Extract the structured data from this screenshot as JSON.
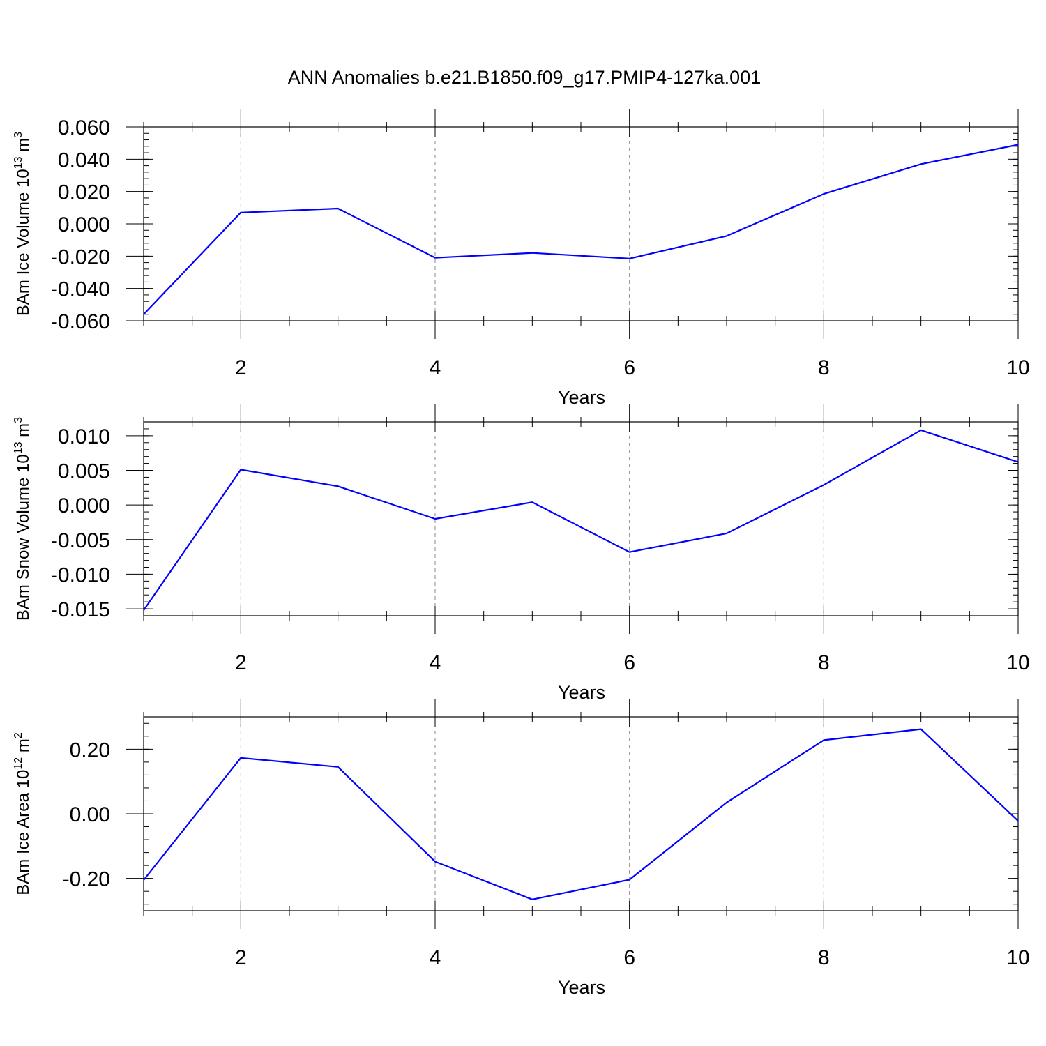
{
  "title": "ANN Anomalies b.e21.B1850.f09_g17.PMIP4-127ka.001",
  "colors": {
    "series": "#0000ff",
    "grid": "#888888"
  },
  "chart_data": [
    {
      "type": "line",
      "ylabel": {
        "main": "BAm Ice Volume 10",
        "sup": "13",
        "unit": " m",
        "unit_sup": "3"
      },
      "xlabel": "Years",
      "x": [
        1,
        2,
        3,
        4,
        5,
        6,
        7,
        8,
        9,
        10
      ],
      "series": [
        {
          "values": [
            -0.056,
            0.007,
            0.0095,
            -0.021,
            -0.018,
            -0.0215,
            -0.0075,
            0.0185,
            0.037,
            0.049
          ]
        }
      ],
      "xlim": [
        1,
        10
      ],
      "ylim": [
        -0.06,
        0.06
      ],
      "xticks": [
        2,
        4,
        6,
        8,
        10
      ],
      "xtick_labels": [
        "2",
        "4",
        "6",
        "8",
        "10"
      ],
      "yticks": [
        -0.06,
        -0.04,
        -0.02,
        0.0,
        0.02,
        0.04,
        0.06
      ],
      "ytick_labels": [
        "-0.060",
        "-0.040",
        "-0.020",
        "0.000",
        "0.020",
        "0.040",
        "0.060"
      ],
      "grid": "x-dashed"
    },
    {
      "type": "line",
      "ylabel": {
        "main": "BAm Snow Volume 10",
        "sup": "13",
        "unit": " m",
        "unit_sup": "3"
      },
      "xlabel": "Years",
      "x": [
        1,
        2,
        3,
        4,
        5,
        6,
        7,
        8,
        9,
        10
      ],
      "series": [
        {
          "values": [
            -0.0152,
            0.0051,
            0.0027,
            -0.002,
            0.0004,
            -0.0068,
            -0.0041,
            0.0029,
            0.0108,
            0.0062
          ]
        }
      ],
      "xlim": [
        1,
        10
      ],
      "ylim": [
        -0.016,
        0.012
      ],
      "xticks": [
        2,
        4,
        6,
        8,
        10
      ],
      "xtick_labels": [
        "2",
        "4",
        "6",
        "8",
        "10"
      ],
      "yticks": [
        -0.015,
        -0.01,
        -0.005,
        0.0,
        0.005,
        0.01
      ],
      "ytick_labels": [
        "-0.015",
        "-0.010",
        "-0.005",
        "0.000",
        "0.005",
        "0.010"
      ],
      "grid": "x-dashed"
    },
    {
      "type": "line",
      "ylabel": {
        "main": "BAm Ice Area 10",
        "sup": "12",
        "unit": " m",
        "unit_sup": "2"
      },
      "xlabel": "Years",
      "x": [
        1,
        2,
        3,
        4,
        5,
        6,
        7,
        8,
        9,
        10
      ],
      "series": [
        {
          "values": [
            -0.205,
            0.173,
            0.145,
            -0.148,
            -0.265,
            -0.204,
            0.035,
            0.228,
            0.262,
            -0.022
          ]
        }
      ],
      "xlim": [
        1,
        10
      ],
      "ylim": [
        -0.3,
        0.3
      ],
      "xticks": [
        2,
        4,
        6,
        8,
        10
      ],
      "xtick_labels": [
        "2",
        "4",
        "6",
        "8",
        "10"
      ],
      "yticks": [
        -0.2,
        0.0,
        0.2
      ],
      "ytick_labels": [
        "-0.20",
        "0.00",
        "0.20"
      ],
      "grid": "x-dashed"
    }
  ]
}
